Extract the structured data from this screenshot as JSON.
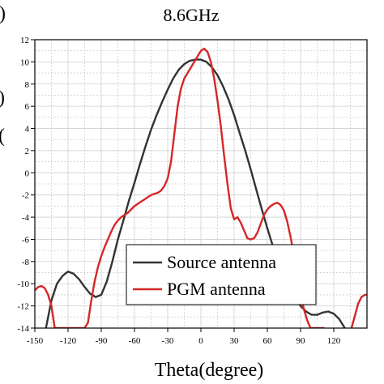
{
  "chart_data": {
    "type": "line",
    "title": "8.6GHz",
    "panel_mark": ")",
    "ylabel_fragments": [
      ")",
      "("
    ],
    "xlabel": "Theta(degree)",
    "ylabel": "",
    "xlim": [
      -150,
      150
    ],
    "ylim": [
      -14,
      12
    ],
    "x_ticks": [
      -150,
      -120,
      -90,
      -60,
      -30,
      0,
      30,
      60,
      90,
      120
    ],
    "y_ticks": [
      -14,
      -12,
      -10,
      -8,
      -6,
      -4,
      -2,
      0,
      2,
      4,
      6,
      8,
      10,
      12
    ],
    "grid": true,
    "legend_position": "bottom-center",
    "series": [
      {
        "name": "Source antenna",
        "color": "#333333",
        "x": [
          -140,
          -135,
          -130,
          -125,
          -120,
          -115,
          -110,
          -105,
          -100,
          -95,
          -90,
          -85,
          -80,
          -75,
          -70,
          -65,
          -60,
          -55,
          -50,
          -45,
          -40,
          -35,
          -30,
          -25,
          -20,
          -15,
          -10,
          -5,
          0,
          5,
          10,
          15,
          20,
          25,
          30,
          35,
          40,
          45,
          50,
          55,
          60,
          65,
          70,
          75,
          80,
          85,
          90,
          95,
          100,
          105,
          110,
          115,
          120,
          125,
          130
        ],
        "y": [
          -14,
          -11.5,
          -10,
          -9.3,
          -8.9,
          -9.1,
          -9.6,
          -10.3,
          -10.9,
          -11.2,
          -11.0,
          -9.8,
          -8.0,
          -6.0,
          -4.3,
          -2.5,
          -0.9,
          0.8,
          2.4,
          3.9,
          5.2,
          6.4,
          7.5,
          8.5,
          9.3,
          9.8,
          10.1,
          10.2,
          10.2,
          10.0,
          9.5,
          8.8,
          7.8,
          6.6,
          5.2,
          3.6,
          2.0,
          0.3,
          -1.5,
          -3.3,
          -5.0,
          -6.6,
          -8.0,
          -9.3,
          -10.4,
          -11.3,
          -12.0,
          -12.5,
          -12.8,
          -12.8,
          -12.6,
          -12.5,
          -12.7,
          -13.2,
          -14
        ]
      },
      {
        "name": "PGM antenna",
        "color": "#d62728",
        "x": [
          -150,
          -147,
          -144,
          -141,
          -138,
          -135,
          -132,
          -129,
          -126,
          -123,
          -120,
          -117,
          -114,
          -111,
          -108,
          -105,
          -102,
          -99,
          -96,
          -93,
          -90,
          -87,
          -84,
          -81,
          -78,
          -75,
          -72,
          -69,
          -66,
          -63,
          -60,
          -57,
          -54,
          -51,
          -48,
          -45,
          -42,
          -39,
          -36,
          -33,
          -30,
          -27,
          -24,
          -21,
          -18,
          -15,
          -12,
          -9,
          -6,
          -3,
          0,
          3,
          6,
          9,
          12,
          15,
          18,
          21,
          24,
          27,
          30,
          33,
          36,
          39,
          42,
          45,
          48,
          51,
          54,
          57,
          60,
          63,
          66,
          69,
          72,
          75,
          78,
          81,
          84,
          87,
          90,
          93,
          96,
          99,
          102,
          105,
          108,
          111
        ],
        "y": [
          -10.6,
          -10.3,
          -10.2,
          -10.4,
          -11.0,
          -12.0,
          -14,
          -14,
          -14,
          -14,
          -14,
          -14,
          -14,
          -14,
          -14,
          -14,
          -13.5,
          -11.5,
          -9.8,
          -8.5,
          -7.5,
          -6.7,
          -6.0,
          -5.3,
          -4.7,
          -4.3,
          -4.0,
          -3.8,
          -3.6,
          -3.3,
          -3.0,
          -2.8,
          -2.6,
          -2.4,
          -2.2,
          -2.0,
          -1.9,
          -1.8,
          -1.6,
          -1.2,
          -0.5,
          1.0,
          3.5,
          6.0,
          7.6,
          8.5,
          9.0,
          9.5,
          10.0,
          10.5,
          11.0,
          11.2,
          10.9,
          10.0,
          8.5,
          6.5,
          4.2,
          1.5,
          -1.0,
          -3.2,
          -4.2,
          -4.0,
          -4.5,
          -5.2,
          -5.9,
          -6.0,
          -5.9,
          -5.4,
          -4.6,
          -3.8,
          -3.3,
          -3.0,
          -2.8,
          -2.7,
          -2.9,
          -3.4,
          -4.4,
          -5.8,
          -7.4,
          -9.2,
          -10.9,
          -12.3,
          -13.3,
          -14,
          -14,
          -14,
          -14,
          -14
        ]
      },
      {
        "name": "",
        "color": "#d62728",
        "x": [
          136,
          139,
          142,
          145,
          148,
          150
        ],
        "y": [
          -14,
          -12.9,
          -11.8,
          -11.2,
          -11.0,
          -11.0
        ]
      }
    ]
  }
}
